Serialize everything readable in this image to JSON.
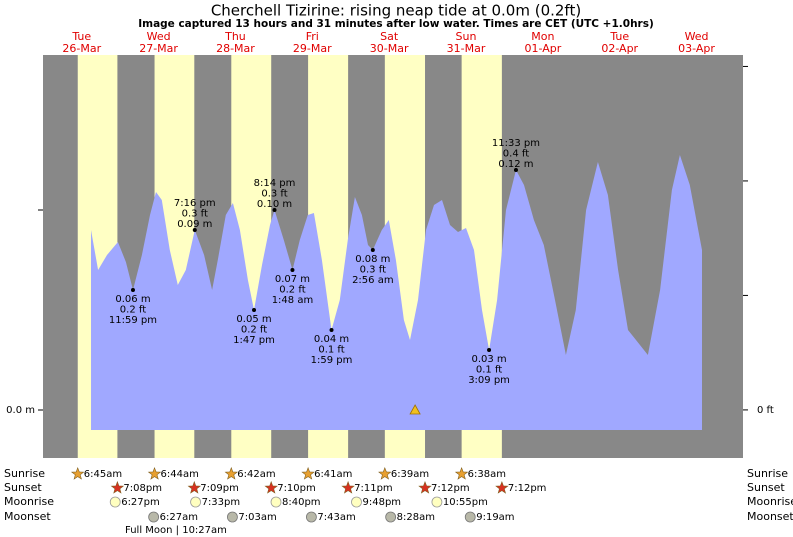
{
  "chart_data": {
    "type": "area",
    "title": "Cherchell Tizirine: rising  neap tide at 0.0m (0.2ft)",
    "subtitle": "Image captured 13 hours and 31 minutes after low water. Times are CET (UTC +1.0hrs)",
    "color": "#a0a8ff",
    "night_color": "#888888",
    "day_color": "#ffffc4",
    "xlim": [
      -4.1,
      214.5
    ],
    "ylim": [
      -0.024,
      0.1775
    ],
    "yticks": [
      {
        "value": 0,
        "label": "0.0 m"
      },
      {
        "value": 0.1,
        "label": null
      }
    ],
    "y2lim": [
      -0.084,
      0.62
    ],
    "y2ticks": [
      {
        "value": 0,
        "label": "0 ft"
      },
      {
        "value": 0.2,
        "label": null
      },
      {
        "value": 0.4,
        "label": null
      },
      {
        "value": 0.6,
        "label": null
      }
    ],
    "xticks": [
      {
        "value": 8,
        "label": "Tue",
        "date": "26-Mar"
      },
      {
        "value": 32,
        "label": "Wed",
        "date": "27-Mar"
      },
      {
        "value": 56,
        "label": "Thu",
        "date": "28-Mar"
      },
      {
        "value": 80,
        "label": "Fri",
        "date": "29-Mar"
      },
      {
        "value": 104,
        "label": "Sat",
        "date": "30-Mar"
      },
      {
        "value": 128,
        "label": "Sun",
        "date": "31-Mar"
      },
      {
        "value": 152,
        "label": "Mon",
        "date": "01-Apr"
      },
      {
        "value": 176,
        "label": "Tue",
        "date": "02-Apr"
      },
      {
        "value": 200,
        "label": "Wed",
        "date": "03-Apr"
      }
    ],
    "x": [
      10.9,
      13.1,
      15.9,
      19.3,
      21.8,
      24.0,
      26.8,
      29.3,
      31.2,
      33.0,
      35.5,
      38.0,
      40.5,
      43.3,
      46.2,
      48.7,
      50.5,
      53.0,
      55.2,
      57.4,
      59.9,
      61.8,
      64.3,
      66.8,
      68.2,
      71.1,
      73.8,
      76.1,
      78.6,
      80.5,
      83.0,
      86.0,
      88.6,
      91.1,
      93.3,
      95.5,
      97.4,
      98.9,
      101.7,
      103.9,
      106.1,
      108.6,
      110.5,
      113.0,
      115.5,
      118.0,
      120.5,
      123.0,
      125.5,
      128.0,
      130.5,
      133.0,
      135.2,
      137.7,
      140.5,
      143.6,
      146.1,
      149.2,
      152.3,
      155.8,
      159.2,
      162.3,
      165.5,
      169.2,
      172.3,
      175.5,
      178.6,
      184.8,
      188.6,
      192.3,
      194.8,
      197.9,
      201.7
    ],
    "values": [
      0.09,
      0.07,
      0.0775,
      0.084,
      0.074,
      0.06,
      0.0775,
      0.0975,
      0.109,
      0.105,
      0.08,
      0.0625,
      0.07,
      0.09,
      0.0775,
      0.06,
      0.075,
      0.0975,
      0.1035,
      0.09,
      0.065,
      0.05,
      0.0725,
      0.0925,
      0.1,
      0.085,
      0.07,
      0.085,
      0.0975,
      0.0985,
      0.075,
      0.04,
      0.055,
      0.085,
      0.1065,
      0.0975,
      0.0825,
      0.08,
      0.09,
      0.095,
      0.075,
      0.045,
      0.035,
      0.055,
      0.09,
      0.1025,
      0.105,
      0.0925,
      0.089,
      0.091,
      0.08,
      0.05,
      0.03,
      0.055,
      0.1,
      0.12,
      0.1125,
      0.095,
      0.0825,
      0.055,
      0.0275,
      0.05,
      0.1,
      0.124,
      0.1075,
      0.07,
      0.04,
      0.0275,
      0.06,
      0.11,
      0.1275,
      0.1125,
      0.08
    ],
    "extremes": [
      {
        "x": 24.0,
        "y": 0.06,
        "position": "below",
        "lines": [
          "0.06 m",
          "0.2 ft",
          "11:59 pm"
        ]
      },
      {
        "x": 43.3,
        "y": 0.09,
        "position": "above",
        "lines": [
          "7:16 pm",
          "0.3 ft",
          "0.09 m"
        ]
      },
      {
        "x": 61.8,
        "y": 0.05,
        "position": "below",
        "lines": [
          "0.05 m",
          "0.2 ft",
          "1:47 pm"
        ]
      },
      {
        "x": 68.2,
        "y": 0.1,
        "position": "above",
        "lines": [
          "8:14 pm",
          "0.3 ft",
          "0.10 m"
        ]
      },
      {
        "x": 73.8,
        "y": 0.07,
        "position": "below",
        "lines": [
          "0.07 m",
          "0.2 ft",
          "1:48 am"
        ]
      },
      {
        "x": 86.0,
        "y": 0.04,
        "position": "below",
        "lines": [
          "0.04 m",
          "0.1 ft",
          "1:59 pm"
        ]
      },
      {
        "x": 98.9,
        "y": 0.08,
        "position": "below",
        "lines": [
          "0.08 m",
          "0.3 ft",
          "2:56 am"
        ]
      },
      {
        "x": 135.2,
        "y": 0.03,
        "position": "below",
        "lines": [
          "0.03 m",
          "0.1 ft",
          "3:09 pm"
        ]
      },
      {
        "x": 143.6,
        "y": 0.12,
        "position": "above",
        "lines": [
          "11:33 pm",
          "0.4 ft",
          "0.12 m"
        ]
      }
    ],
    "now": {
      "x": 112.1,
      "y": 0
    },
    "rows": [
      "Sunrise",
      "Sunset",
      "Moonrise",
      "Moonset"
    ],
    "sunrise": [
      {
        "date": "26-Mar",
        "time": "6:45am"
      },
      {
        "date": "27-Mar",
        "time": "6:44am"
      },
      {
        "date": "28-Mar",
        "time": "6:42am"
      },
      {
        "date": "29-Mar",
        "time": "6:41am"
      },
      {
        "date": "30-Mar",
        "time": "6:39am"
      },
      {
        "date": "31-Mar",
        "time": "6:38am"
      }
    ],
    "sunset": [
      {
        "date": "26-Mar",
        "time": "7:08pm"
      },
      {
        "date": "27-Mar",
        "time": "7:09pm"
      },
      {
        "date": "28-Mar",
        "time": "7:10pm"
      },
      {
        "date": "29-Mar",
        "time": "7:11pm"
      },
      {
        "date": "30-Mar",
        "time": "7:12pm"
      },
      {
        "date": "31-Mar",
        "time": "7:12pm"
      }
    ],
    "moonrise": [
      {
        "date": "26-Mar",
        "time": "6:27pm"
      },
      {
        "date": "27-Mar",
        "time": "7:33pm"
      },
      {
        "date": "28-Mar",
        "time": "8:40pm"
      },
      {
        "date": "29-Mar",
        "time": "9:48pm"
      },
      {
        "date": "30-Mar",
        "time": "10:55pm"
      }
    ],
    "moonset": [
      {
        "date": "27-Mar",
        "time": "6:27am"
      },
      {
        "date": "28-Mar",
        "time": "7:03am"
      },
      {
        "date": "29-Mar",
        "time": "7:43am"
      },
      {
        "date": "30-Mar",
        "time": "8:28am"
      },
      {
        "date": "31-Mar",
        "time": "9:19am"
      }
    ],
    "moon_phase": "Full Moon | 10:27am"
  }
}
